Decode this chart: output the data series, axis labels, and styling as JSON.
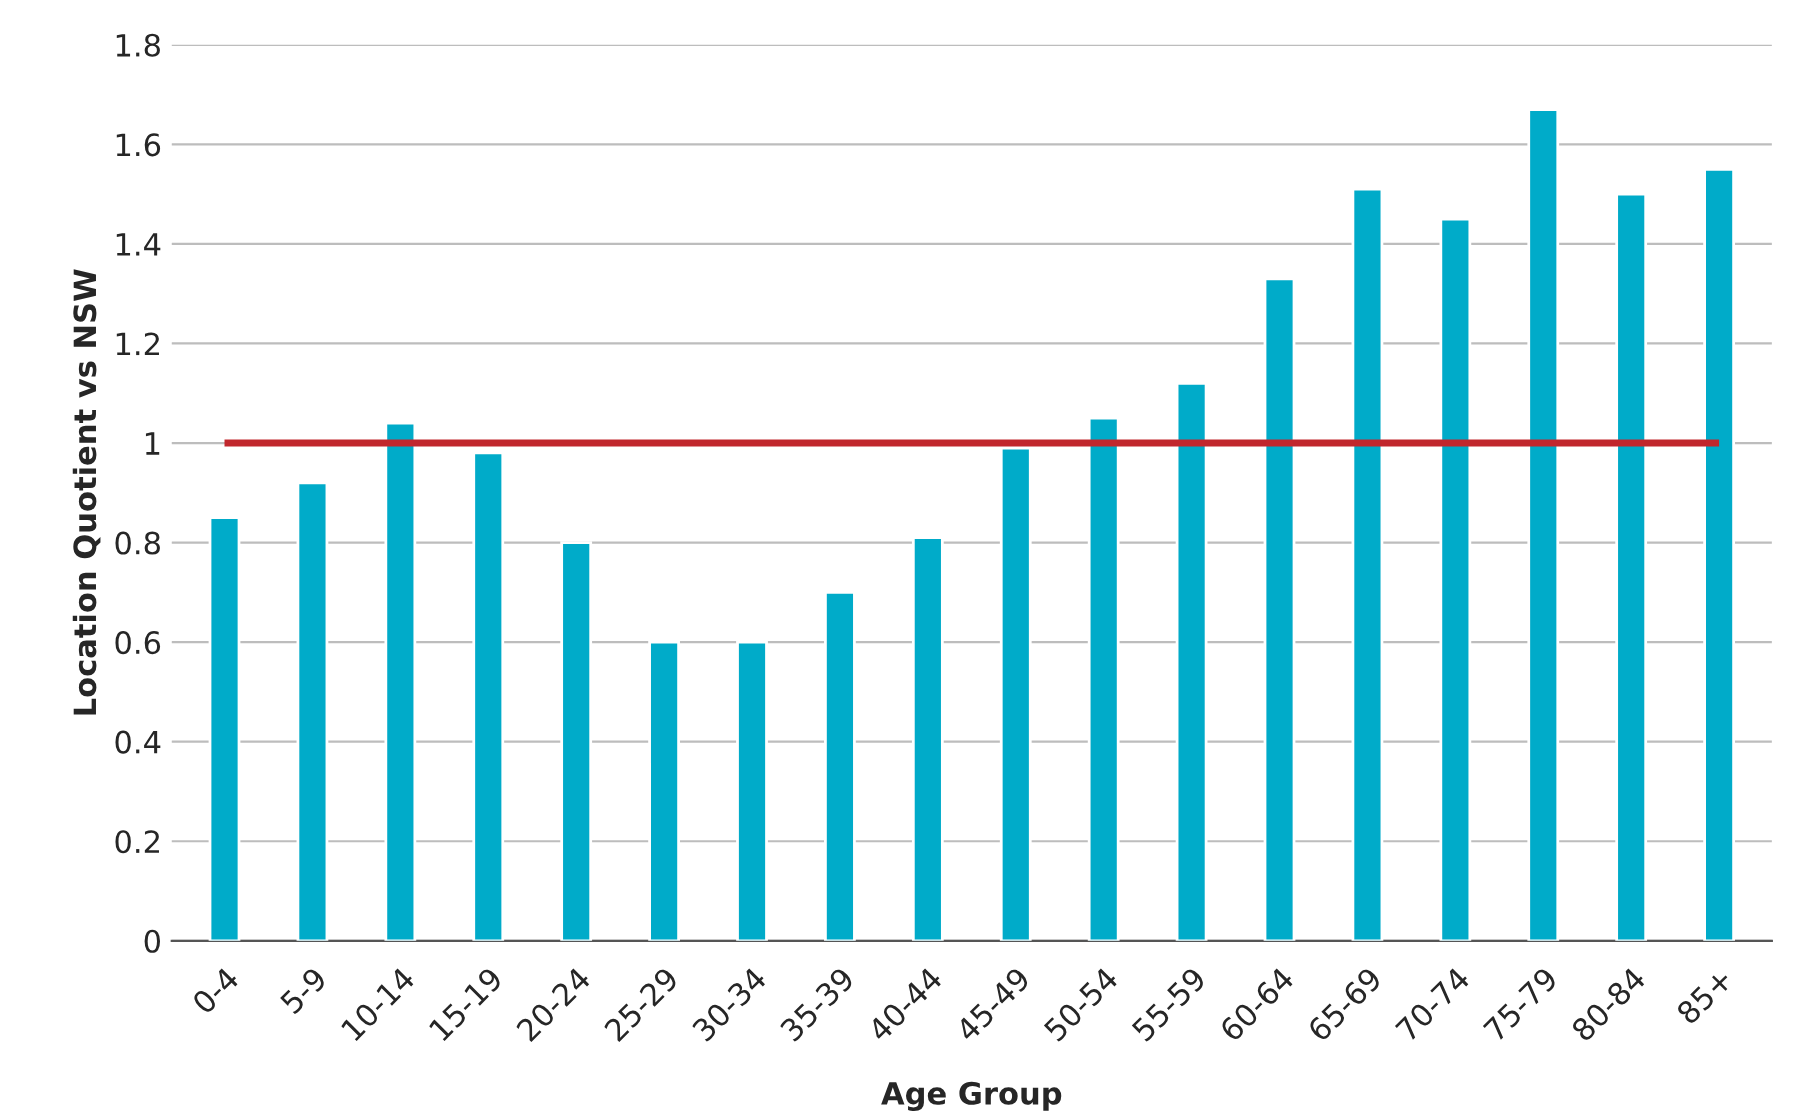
{
  "chart_data": {
    "type": "bar",
    "xlabel": "Age Group",
    "ylabel": "Location Quotient vs NSW",
    "categories": [
      "0-4",
      "5-9",
      "10-14",
      "15-19",
      "20-24",
      "25-29",
      "30-34",
      "35-39",
      "40-44",
      "45-49",
      "50-54",
      "55-59",
      "60-64",
      "65-69",
      "70-74",
      "75-79",
      "80-84",
      "85+"
    ],
    "values": [
      0.85,
      0.92,
      1.04,
      0.98,
      0.8,
      0.6,
      0.6,
      0.7,
      0.81,
      0.99,
      1.05,
      1.12,
      1.33,
      1.51,
      1.45,
      1.67,
      1.5,
      1.55
    ],
    "color": "#00abc9",
    "ylim": [
      0,
      1.8
    ],
    "yticks": [
      0,
      0.2,
      0.4,
      0.6,
      0.8,
      1,
      1.2,
      1.4,
      1.6,
      1.8
    ],
    "grid": "y",
    "ref_lines": [
      {
        "axis": "y",
        "value": 1,
        "label": null,
        "color": "#c1272d"
      }
    ]
  }
}
